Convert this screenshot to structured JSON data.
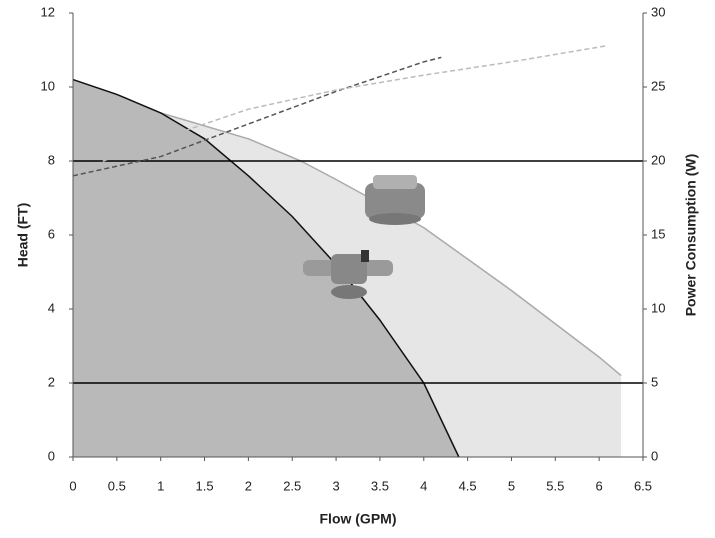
{
  "chart_data": {
    "type": "area",
    "x_label": "Flow (GPM)",
    "y_label": "Head (FT)",
    "y2_label": "Power Consumption (W)",
    "xlim": [
      0,
      6.5
    ],
    "xticks": [
      0,
      0.5,
      1,
      1.5,
      2,
      2.5,
      3,
      3.5,
      4,
      4.5,
      5,
      5.5,
      6,
      6.5
    ],
    "ylim": [
      0,
      12
    ],
    "yticks": [
      0,
      2,
      4,
      6,
      8,
      10,
      12
    ],
    "y2lim": [
      0,
      30
    ],
    "y2ticks": [
      0,
      5,
      10,
      15,
      20,
      25,
      30
    ],
    "reference_lines": [
      8,
      2
    ],
    "series": [
      {
        "color": "#e6e6e6",
        "line_color": "#aaaaaa",
        "x": [
          0,
          1,
          2,
          2.6,
          3,
          4,
          5,
          6,
          6.25
        ],
        "values": [
          9.7,
          9.3,
          8.6,
          8.0,
          7.5,
          6.2,
          4.5,
          2.7,
          2.2
        ]
      },
      {
        "color": "#b9b9b9",
        "line_color": "#111111",
        "x": [
          0,
          0.5,
          1,
          1.5,
          2,
          2.5,
          3,
          3.5,
          4,
          4.4
        ],
        "values": [
          10.2,
          9.8,
          9.3,
          8.6,
          7.6,
          6.5,
          5.2,
          3.7,
          2.0,
          0
        ]
      },
      {
        "color": "#555555",
        "axis": "y2",
        "dashed": true,
        "x": [
          0,
          1,
          2,
          3,
          4,
          4.2
        ],
        "values": [
          19,
          20.3,
          22.5,
          24.7,
          26.7,
          27
        ]
      },
      {
        "color": "#bbbbbb",
        "axis": "y2",
        "dashed": true,
        "x": [
          0,
          1,
          2,
          3,
          4,
          5,
          6.1
        ],
        "values": [
          19.2,
          21.5,
          23.5,
          24.8,
          25.8,
          26.7,
          27.8
        ]
      }
    ]
  }
}
